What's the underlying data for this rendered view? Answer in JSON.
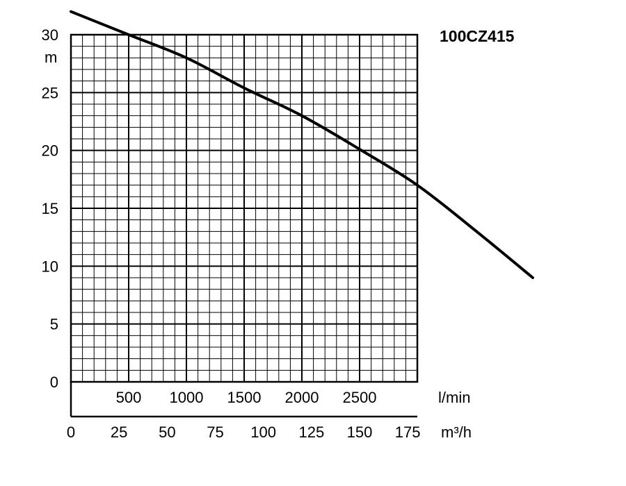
{
  "chart_data": {
    "type": "line",
    "title": "100CZ415",
    "y_unit": "m",
    "x_unit_lmin": "l/min",
    "x_unit_m3h": "m³/h",
    "ylim": [
      0,
      30
    ],
    "xlim_lmin": [
      0,
      3000
    ],
    "y_ticks": [
      "0",
      "5",
      "10",
      "15",
      "20",
      "25",
      "30"
    ],
    "x_ticks_lmin": [
      "500",
      "1000",
      "1500",
      "2000",
      "2500"
    ],
    "x_ticks_m3h": [
      "0",
      "25",
      "50",
      "75",
      "100",
      "125",
      "150",
      "175"
    ],
    "grid": true,
    "series": [
      {
        "x": [
          0,
          500,
          1000,
          1500,
          2000,
          2500,
          3000,
          3500,
          4000
        ],
        "y": [
          32,
          30,
          28,
          25.4,
          23,
          20.1,
          17,
          13.1,
          9
        ]
      }
    ]
  }
}
